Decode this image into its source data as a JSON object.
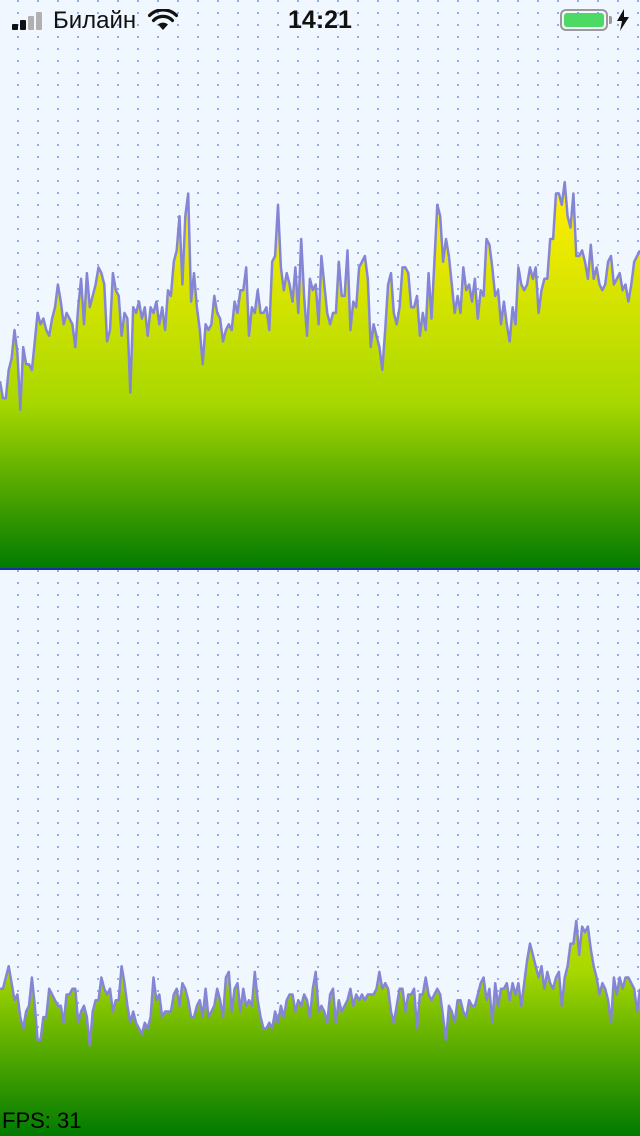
{
  "status_bar": {
    "carrier": "Билайн",
    "time": "14:21",
    "battery_color": "#4cd964"
  },
  "colors": {
    "background": "#f0f7fe",
    "grid_dots": "#8fb0f0",
    "line": "#8585d6",
    "fill_top": "#ffee00",
    "fill_bottom": "#007a00",
    "divider": "#1c2fa8"
  },
  "chart_data": [
    {
      "type": "area",
      "ylim": [
        0,
        100
      ],
      "values": [
        33,
        30,
        30,
        35,
        37,
        42,
        38,
        28,
        39,
        36,
        36,
        35,
        40,
        45,
        43,
        44,
        42,
        41,
        44,
        46,
        50,
        47,
        43,
        45,
        44,
        43,
        39,
        46,
        51,
        43,
        52,
        46,
        48,
        50,
        53,
        52,
        50,
        40,
        42,
        52,
        49,
        48,
        41,
        45,
        44,
        31,
        46,
        45,
        47,
        44,
        46,
        41,
        46,
        45,
        47,
        43,
        46,
        42,
        49,
        48,
        54,
        56,
        62,
        50,
        62,
        66,
        47,
        52,
        46,
        42,
        36,
        43,
        42,
        43,
        48,
        45,
        44,
        40,
        42,
        43,
        42,
        47,
        45,
        49,
        49,
        53,
        41,
        46,
        45,
        49,
        45,
        45,
        46,
        42,
        54,
        55,
        64,
        53,
        49,
        52,
        50,
        47,
        53,
        45,
        58,
        48,
        41,
        51,
        49,
        50,
        43,
        55,
        50,
        45,
        43,
        45,
        45,
        54,
        48,
        48,
        56,
        42,
        47,
        46,
        53,
        54,
        55,
        51,
        39,
        43,
        41,
        39,
        35,
        42,
        50,
        52,
        45,
        43,
        46,
        53,
        53,
        52,
        46,
        46,
        48,
        41,
        45,
        42,
        52,
        44,
        54,
        64,
        62,
        54,
        58,
        55,
        50,
        45,
        48,
        45,
        53,
        49,
        50,
        47,
        51,
        44,
        49,
        48,
        58,
        57,
        53,
        48,
        49,
        43,
        47,
        43,
        40,
        46,
        43,
        53,
        50,
        49,
        50,
        53,
        51,
        53,
        45,
        49,
        51,
        51,
        58,
        58,
        66,
        66,
        64,
        68,
        62,
        60,
        66,
        55,
        55,
        56,
        54,
        51,
        57,
        51,
        53,
        50,
        49,
        50,
        54,
        55,
        50,
        51,
        52,
        49,
        50,
        47,
        50,
        54,
        55,
        56
      ]
    },
    {
      "type": "area",
      "ylim": [
        0,
        100
      ],
      "values": [
        26,
        26,
        28,
        30,
        27,
        24,
        25,
        21,
        19,
        22,
        23,
        28,
        23,
        17,
        17,
        21,
        21,
        26,
        25,
        24,
        23,
        23,
        20,
        25,
        25,
        26,
        26,
        20,
        22,
        23,
        21,
        16,
        22,
        24,
        24,
        28,
        26,
        25,
        26,
        22,
        24,
        24,
        30,
        27,
        23,
        20,
        22,
        20,
        19,
        18,
        20,
        19,
        21,
        28,
        24,
        25,
        21,
        22,
        22,
        22,
        25,
        26,
        23,
        27,
        26,
        24,
        21,
        21,
        23,
        24,
        21,
        26,
        21,
        22,
        23,
        26,
        24,
        21,
        28,
        29,
        22,
        26,
        27,
        22,
        26,
        23,
        24,
        23,
        29,
        24,
        21,
        19,
        19,
        20,
        19,
        22,
        20,
        23,
        21,
        24,
        25,
        25,
        22,
        24,
        23,
        25,
        24,
        21,
        26,
        29,
        22,
        23,
        22,
        20,
        25,
        26,
        20,
        24,
        22,
        23,
        24,
        26,
        23,
        25,
        24,
        25,
        24,
        25,
        25,
        25,
        26,
        29,
        26,
        27,
        26,
        22,
        20,
        23,
        26,
        26,
        22,
        25,
        25,
        26,
        19,
        25,
        25,
        28,
        25,
        24,
        25,
        26,
        25,
        21,
        17,
        23,
        22,
        20,
        24,
        24,
        22,
        21,
        24,
        23,
        23,
        25,
        27,
        28,
        24,
        26,
        20,
        27,
        23,
        26,
        26,
        27,
        24,
        27,
        25,
        27,
        23,
        27,
        31,
        34,
        32,
        30,
        28,
        30,
        26,
        29,
        27,
        26,
        28,
        29,
        23,
        28,
        30,
        34,
        34,
        38,
        32,
        37,
        36,
        37,
        33,
        30,
        28,
        25,
        27,
        26,
        24,
        20,
        28,
        25,
        28,
        26,
        28,
        28,
        27,
        26,
        22,
        26
      ]
    }
  ],
  "fps": {
    "label": "FPS: 31"
  }
}
